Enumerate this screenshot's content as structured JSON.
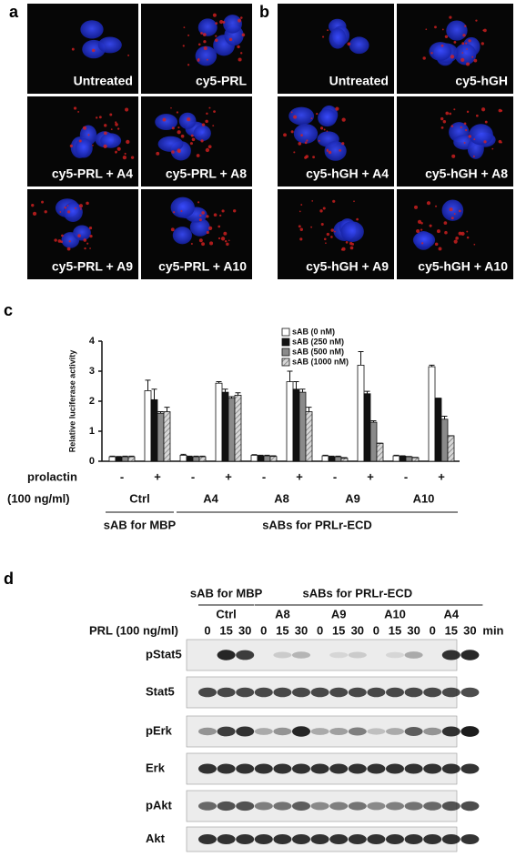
{
  "panel_a": {
    "label": "a",
    "captions": [
      "Untreated",
      "cy5-PRL",
      "cy5-PRL + A4",
      "cy5-PRL + A8",
      "cy5-PRL + A9",
      "cy5-PRL + A10"
    ]
  },
  "panel_b": {
    "label": "b",
    "captions": [
      "Untreated",
      "cy5-hGH",
      "cy5-hGH + A4",
      "cy5-hGH + A8",
      "cy5-hGH + A9",
      "cy5-hGH + A10"
    ]
  },
  "chart_data": {
    "type": "bar",
    "panel_label": "c",
    "y_label": "Relative luciferase activity",
    "categories": [
      "-",
      "+",
      "-",
      "+",
      "-",
      "+",
      "-",
      "+",
      "-",
      "+"
    ],
    "groups": [
      "Ctrl",
      "A4",
      "A8",
      "A9",
      "A10"
    ],
    "row_labels": [
      "prolactin",
      "(100 ng/ml)"
    ],
    "brackets": [
      "sAB for MBP",
      "sABs for PRLr-ECD"
    ],
    "ylim": [
      0,
      4
    ],
    "yticks": [
      0,
      1,
      2,
      3,
      4
    ],
    "series": [
      {
        "name": "sAB (0 nM)",
        "color": "#ffffff",
        "values": [
          0.15,
          2.35,
          0.2,
          2.6,
          0.2,
          2.65,
          0.18,
          3.2,
          0.18,
          3.15
        ],
        "errors": [
          0.02,
          0.35,
          0.03,
          0.05,
          0.02,
          0.35,
          0.02,
          0.45,
          0.02,
          0.05
        ]
      },
      {
        "name": "sAB (250 nM)",
        "color": "#111111",
        "values": [
          0.15,
          2.05,
          0.15,
          2.3,
          0.18,
          2.4,
          0.15,
          2.25,
          0.17,
          2.1
        ],
        "errors": [
          0.01,
          0.35,
          0.02,
          0.1,
          0.02,
          0.25,
          0.02,
          0.08,
          0.01,
          0
        ]
      },
      {
        "name": "sAB (500 nM)",
        "color": "#8a8a8a",
        "values": [
          0.15,
          1.6,
          0.15,
          2.1,
          0.18,
          2.3,
          0.15,
          1.3,
          0.15,
          1.4
        ],
        "errors": [
          0.02,
          0.05,
          0.02,
          0.05,
          0.02,
          0.1,
          0.02,
          0.05,
          0.01,
          0.1
        ]
      },
      {
        "name": "sAB (1000 nM)",
        "color": "#c8c8c8",
        "pattern": "hatch",
        "values": [
          0.15,
          1.65,
          0.15,
          2.2,
          0.16,
          1.65,
          0.1,
          0.6,
          0.12,
          0.85
        ],
        "errors": [
          0.02,
          0.15,
          0.02,
          0.08,
          0.02,
          0.15,
          0.02,
          0,
          0.01,
          0
        ]
      }
    ]
  },
  "panel_d": {
    "label": "d",
    "headers": [
      "sAB for MBP",
      "sABs for PRLr-ECD"
    ],
    "groups": [
      "Ctrl",
      "A8",
      "A9",
      "A10",
      "A4"
    ],
    "row_label": "PRL (100 ng/ml)",
    "times": [
      "0",
      "15",
      "30"
    ],
    "unit": "min",
    "blots": [
      "pStat5",
      "Stat5",
      "pErk",
      "Erk",
      "pAkt",
      "Akt"
    ]
  }
}
